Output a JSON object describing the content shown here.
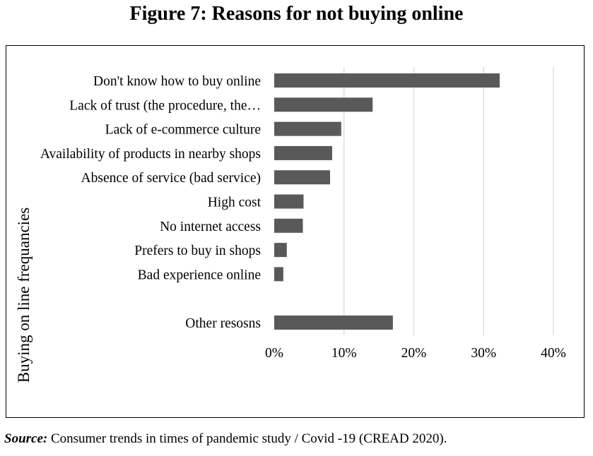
{
  "figure": {
    "title": "Figure 7: Reasons for not buying online"
  },
  "source": {
    "label": "Source:",
    "text": " Consumer trends in times of pandemic study / Covid -19 (CREAD 2020)."
  },
  "chart_data": {
    "type": "bar",
    "orientation": "horizontal",
    "title": "",
    "xlabel": "",
    "ylabel": "Buying on line frequancies",
    "categories": [
      "Don't know how to buy online",
      "Lack of trust (the procedure, the…",
      "Lack of e-commerce culture",
      "Availability of products in nearby shops",
      "Absence of service (bad service)",
      "High cost",
      "No internet access",
      "Prefers to buy in shops",
      "Bad experience online",
      "",
      "Other resosns"
    ],
    "values": [
      32.3,
      14.1,
      9.6,
      8.3,
      8.0,
      4.2,
      4.1,
      1.8,
      1.3,
      null,
      17.0
    ],
    "xlim": [
      0,
      40
    ],
    "xticks": [
      0,
      10,
      20,
      30,
      40
    ],
    "xtick_labels": [
      "0%",
      "10%",
      "20%",
      "30%",
      "40%"
    ],
    "grid": "vertical",
    "legend": "none",
    "bar_color": "#595959",
    "grid_color": "#d9d9d9"
  }
}
